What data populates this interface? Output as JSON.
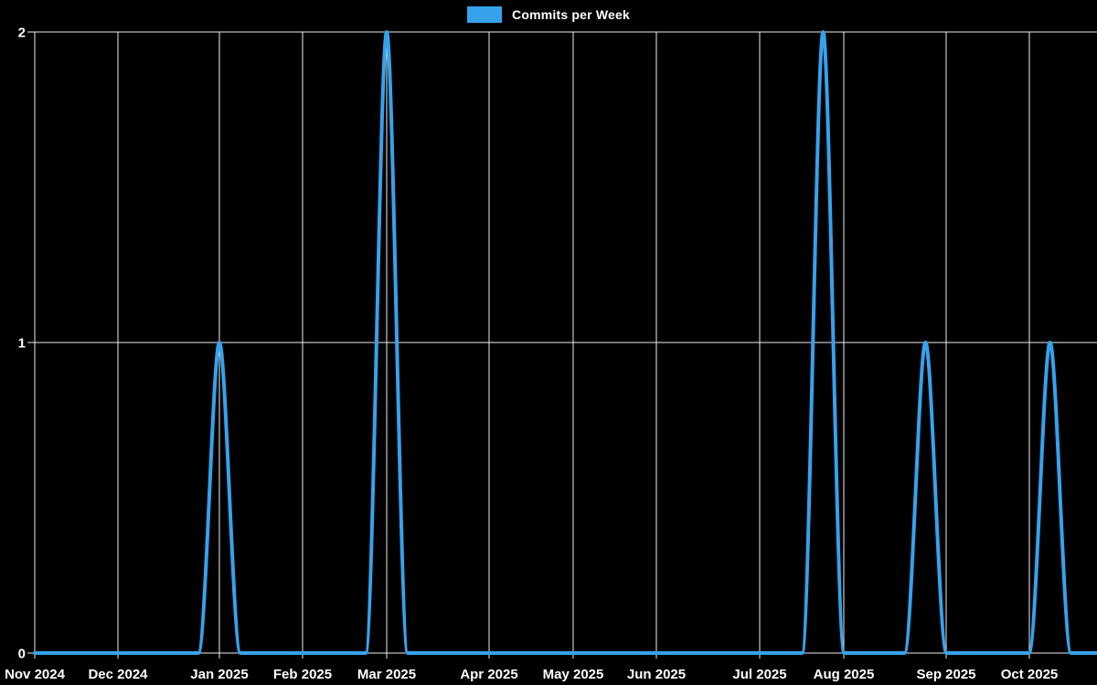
{
  "legend": {
    "label": "Commits per Week",
    "swatch_color": "#36a2eb"
  },
  "chart_data": {
    "type": "line",
    "title": "Commits per Week",
    "background_color": "#000000",
    "line_color": "#36a2eb",
    "grid": true,
    "legend_position": "top-center",
    "x_tick_labels": [
      "Nov 2024",
      "Dec 2024",
      "Jan 2025",
      "Feb 2025",
      "Mar 2025",
      "Apr 2025",
      "May 2025",
      "Jun 2025",
      "Jul 2025",
      "Aug 2025",
      "Sep 2025",
      "Oct 2025"
    ],
    "y_tick_labels": [
      "0",
      "1",
      "2"
    ],
    "y_ticks": [
      0,
      1,
      2
    ],
    "ylim": [
      0,
      2
    ],
    "series": [
      {
        "name": "Commits per Week",
        "unit": "commits",
        "baseline_value": 0,
        "peaks": [
          {
            "near_month": "Jan 2025",
            "week_offset": 0,
            "value": 1
          },
          {
            "near_month": "Mar 2025",
            "week_offset": 0,
            "value": 2
          },
          {
            "near_month": "Aug 2025",
            "week_offset": -1,
            "value": 2
          },
          {
            "near_month": "Sep 2025",
            "week_offset": -1,
            "value": 1
          },
          {
            "near_month": "Oct 2025",
            "week_offset": 1,
            "value": 1
          }
        ]
      }
    ]
  }
}
